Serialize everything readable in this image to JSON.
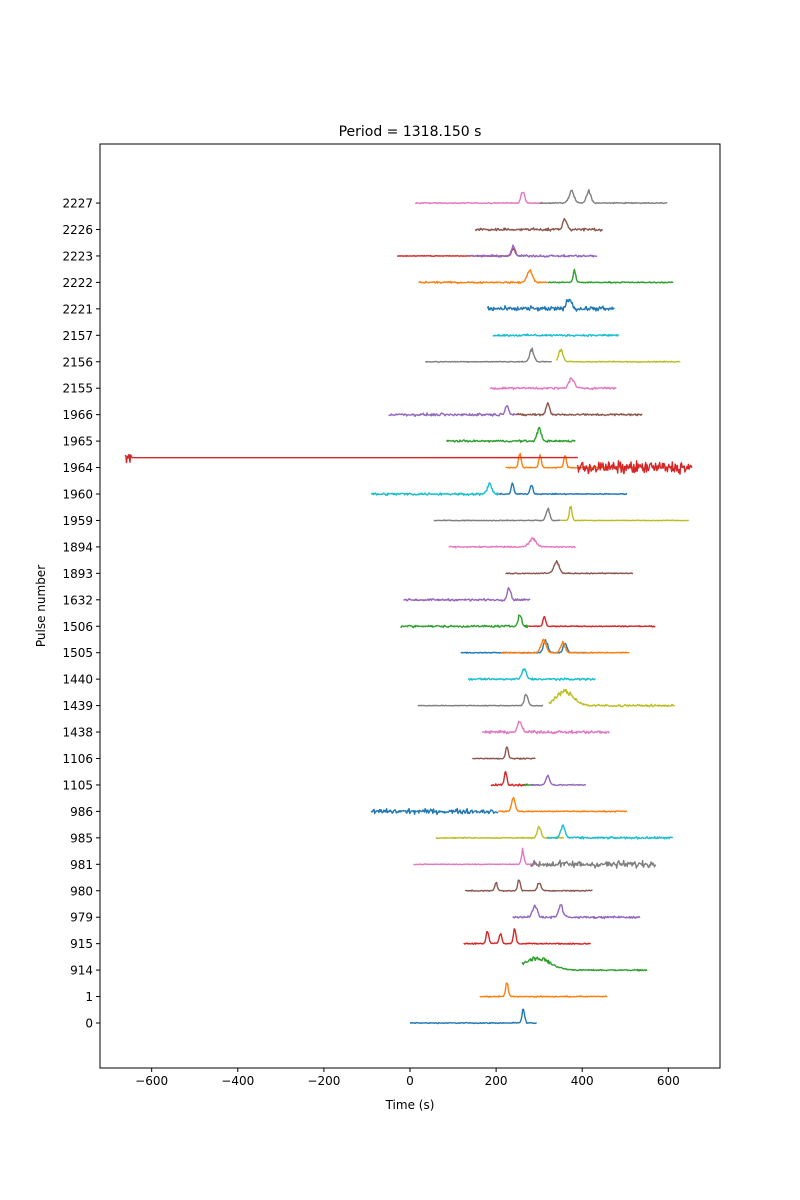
{
  "chart_data": {
    "type": "line",
    "title": "Period = 1318.150 s",
    "xlabel": "Time (s)",
    "ylabel": "Pulse number",
    "xlim": [
      -720,
      720
    ],
    "x_ticks": [
      -600,
      -400,
      -200,
      0,
      200,
      400,
      600
    ],
    "y_ticks": [
      "0",
      "1",
      "914",
      "915",
      "979",
      "980",
      "981",
      "985",
      "986",
      "1105",
      "1106",
      "1438",
      "1439",
      "1440",
      "1505",
      "1506",
      "1632",
      "1893",
      "1894",
      "1959",
      "1960",
      "1964",
      "1965",
      "1966",
      "2155",
      "2156",
      "2157",
      "2221",
      "2222",
      "2223",
      "2226",
      "2227"
    ],
    "grid": false,
    "legend": "none",
    "traces": [
      {
        "row": 0,
        "color": "#1f77b4",
        "x0": 0,
        "x1": 295,
        "features": [
          [
            263,
            14,
            3
          ]
        ],
        "noise": 0.8
      },
      {
        "row": 1,
        "color": "#ff7f0e",
        "x0": 162,
        "x1": 458,
        "features": [
          [
            225,
            14,
            3
          ]
        ],
        "noise": 0.8
      },
      {
        "row": 2,
        "color": "#2ca02c",
        "x0": 260,
        "x1": 552,
        "features": [
          [
            295,
            12,
            30
          ]
        ],
        "noise": 1.0
      },
      {
        "row": 3,
        "color": "#d62728",
        "x0": 125,
        "x1": 420,
        "features": [
          [
            180,
            12,
            3
          ],
          [
            210,
            10,
            3
          ],
          [
            243,
            14,
            3
          ]
        ],
        "noise": 1.0
      },
      {
        "row": 4,
        "color": "#9467bd",
        "x0": 238,
        "x1": 535,
        "features": [
          [
            290,
            12,
            5
          ],
          [
            350,
            12,
            5
          ]
        ],
        "noise": 1.5
      },
      {
        "row": 5,
        "color": "#8c564b",
        "x0": 128,
        "x1": 425,
        "features": [
          [
            200,
            8,
            3
          ],
          [
            253,
            12,
            3
          ],
          [
            300,
            8,
            4
          ]
        ],
        "noise": 0.8
      },
      {
        "row": 6,
        "color": "#e377c2",
        "x0": 8,
        "x1": 300,
        "features": [
          [
            262,
            14,
            3
          ]
        ],
        "noise": 0.6
      },
      {
        "row": 6,
        "color": "#7f7f7f",
        "x0": 280,
        "x1": 572,
        "features": [],
        "noise": 5.0
      },
      {
        "row": 7,
        "color": "#bcbd22",
        "x0": 60,
        "x1": 358,
        "features": [
          [
            300,
            12,
            4
          ]
        ],
        "noise": 0.8
      },
      {
        "row": 7,
        "color": "#17becf",
        "x0": 318,
        "x1": 612,
        "features": [
          [
            355,
            12,
            5
          ]
        ],
        "noise": 1.5
      },
      {
        "row": 8,
        "color": "#1f77b4",
        "x0": -90,
        "x1": 205,
        "features": [],
        "noise": 3.5
      },
      {
        "row": 8,
        "color": "#ff7f0e",
        "x0": 205,
        "x1": 505,
        "features": [
          [
            240,
            14,
            4
          ]
        ],
        "noise": 0.8
      },
      {
        "row": 9,
        "color": "#d62728",
        "x0": 188,
        "x1": 275,
        "features": [
          [
            222,
            13,
            3
          ]
        ],
        "noise": 1.5
      },
      {
        "row": 9,
        "color": "#2ca02c",
        "x0": 262,
        "x1": 300,
        "features": [],
        "noise": 0.6
      },
      {
        "row": 9,
        "color": "#9467bd",
        "x0": 280,
        "x1": 410,
        "features": [
          [
            320,
            10,
            4
          ]
        ],
        "noise": 1.0
      },
      {
        "row": 10,
        "color": "#8c564b",
        "x0": 145,
        "x1": 292,
        "features": [
          [
            225,
            12,
            3
          ]
        ],
        "noise": 0.8
      },
      {
        "row": 11,
        "color": "#e377c2",
        "x0": 168,
        "x1": 465,
        "features": [
          [
            255,
            10,
            5
          ]
        ],
        "noise": 2.0
      },
      {
        "row": 12,
        "color": "#7f7f7f",
        "x0": 18,
        "x1": 310,
        "features": [
          [
            270,
            12,
            4
          ]
        ],
        "noise": 0.6
      },
      {
        "row": 12,
        "color": "#bcbd22",
        "x0": 322,
        "x1": 615,
        "features": [
          [
            360,
            14,
            20
          ]
        ],
        "noise": 1.6
      },
      {
        "row": 13,
        "color": "#17becf",
        "x0": 135,
        "x1": 432,
        "features": [
          [
            265,
            10,
            5
          ]
        ],
        "noise": 1.5
      },
      {
        "row": 14,
        "color": "#1f77b4",
        "x0": 118,
        "x1": 412,
        "features": [
          [
            315,
            12,
            5
          ],
          [
            360,
            10,
            4
          ]
        ],
        "noise": 0.6
      },
      {
        "row": 14,
        "color": "#ff7f0e",
        "x0": 212,
        "x1": 510,
        "features": [
          [
            310,
            12,
            6
          ],
          [
            355,
            10,
            5
          ]
        ],
        "noise": 0.8
      },
      {
        "row": 15,
        "color": "#2ca02c",
        "x0": -22,
        "x1": 275,
        "features": [
          [
            255,
            12,
            4
          ]
        ],
        "noise": 1.5
      },
      {
        "row": 15,
        "color": "#d62728",
        "x0": 275,
        "x1": 570,
        "features": [
          [
            312,
            10,
            3
          ]
        ],
        "noise": 0.8
      },
      {
        "row": 16,
        "color": "#9467bd",
        "x0": -15,
        "x1": 280,
        "features": [
          [
            230,
            12,
            4
          ]
        ],
        "noise": 1.5
      },
      {
        "row": 17,
        "color": "#8c564b",
        "x0": 222,
        "x1": 518,
        "features": [
          [
            340,
            12,
            6
          ]
        ],
        "noise": 0.8
      },
      {
        "row": 18,
        "color": "#e377c2",
        "x0": 90,
        "x1": 385,
        "features": [
          [
            285,
            8,
            8
          ]
        ],
        "noise": 1.0
      },
      {
        "row": 19,
        "color": "#7f7f7f",
        "x0": 55,
        "x1": 350,
        "features": [
          [
            320,
            12,
            4
          ]
        ],
        "noise": 0.6
      },
      {
        "row": 19,
        "color": "#bcbd22",
        "x0": 350,
        "x1": 648,
        "features": [
          [
            373,
            14,
            3
          ]
        ],
        "noise": 0.5
      },
      {
        "row": 20,
        "color": "#17becf",
        "x0": -90,
        "x1": 205,
        "features": [
          [
            185,
            10,
            5
          ]
        ],
        "noise": 1.8
      },
      {
        "row": 20,
        "color": "#1f77b4",
        "x0": 205,
        "x1": 505,
        "features": [
          [
            238,
            10,
            3
          ],
          [
            282,
            10,
            3
          ]
        ],
        "noise": 0.8
      },
      {
        "row": 21,
        "color": "#ff7f0e",
        "x0": 222,
        "x1": 520,
        "features": [
          [
            255,
            14,
            3
          ],
          [
            302,
            12,
            3
          ],
          [
            360,
            12,
            3
          ]
        ],
        "noise": 0.8
      },
      {
        "row": 21,
        "color": "#d62728",
        "x0": 388,
        "x1": 655,
        "features": [],
        "noise": 9.0
      },
      {
        "row": 22,
        "color": "#2ca02c",
        "x0": 85,
        "x1": 385,
        "features": [
          [
            300,
            12,
            5
          ]
        ],
        "noise": 1.5
      },
      {
        "row": 23,
        "color": "#9467bd",
        "x0": -50,
        "x1": 245,
        "features": [
          [
            225,
            10,
            4
          ]
        ],
        "noise": 2.0
      },
      {
        "row": 23,
        "color": "#8c564b",
        "x0": 245,
        "x1": 540,
        "features": [
          [
            320,
            12,
            4
          ]
        ],
        "noise": 1.5
      },
      {
        "row": 24,
        "color": "#e377c2",
        "x0": 185,
        "x1": 480,
        "features": [
          [
            375,
            10,
            6
          ]
        ],
        "noise": 1.5
      },
      {
        "row": 25,
        "color": "#7f7f7f",
        "x0": 35,
        "x1": 330,
        "features": [
          [
            283,
            12,
            5
          ]
        ],
        "noise": 0.6
      },
      {
        "row": 25,
        "color": "#bcbd22",
        "x0": 340,
        "x1": 628,
        "features": [
          [
            350,
            12,
            5
          ]
        ],
        "noise": 0.8
      },
      {
        "row": 26,
        "color": "#17becf",
        "x0": 192,
        "x1": 485,
        "features": [],
        "noise": 1.5
      },
      {
        "row": 27,
        "color": "#1f77b4",
        "x0": 180,
        "x1": 475,
        "features": [
          [
            370,
            10,
            6
          ]
        ],
        "noise": 3.5
      },
      {
        "row": 28,
        "color": "#ff7f0e",
        "x0": 20,
        "x1": 320,
        "features": [
          [
            278,
            12,
            6
          ]
        ],
        "noise": 1.2
      },
      {
        "row": 28,
        "color": "#2ca02c",
        "x0": 320,
        "x1": 612,
        "features": [
          [
            382,
            12,
            3
          ]
        ],
        "noise": 0.8
      },
      {
        "row": 29,
        "color": "#d62728",
        "x0": -30,
        "x1": 260,
        "features": [
          [
            240,
            8,
            4
          ]
        ],
        "noise": 0.6
      },
      {
        "row": 29,
        "color": "#9467bd",
        "x0": 140,
        "x1": 435,
        "features": [
          [
            240,
            10,
            4
          ]
        ],
        "noise": 1.5
      },
      {
        "row": 30,
        "color": "#8c564b",
        "x0": 152,
        "x1": 448,
        "features": [
          [
            360,
            10,
            5
          ]
        ],
        "noise": 2.2
      },
      {
        "row": 31,
        "color": "#e377c2",
        "x0": 12,
        "x1": 310,
        "features": [
          [
            262,
            12,
            4
          ]
        ],
        "noise": 0.8
      },
      {
        "row": 31,
        "color": "#7f7f7f",
        "x0": 300,
        "x1": 598,
        "features": [
          [
            375,
            12,
            6
          ],
          [
            415,
            12,
            5
          ]
        ],
        "noise": 0.8
      }
    ],
    "outlier_trace": {
      "row": 21,
      "color": "#d62728",
      "x_start": -655,
      "x_join": 390
    }
  }
}
